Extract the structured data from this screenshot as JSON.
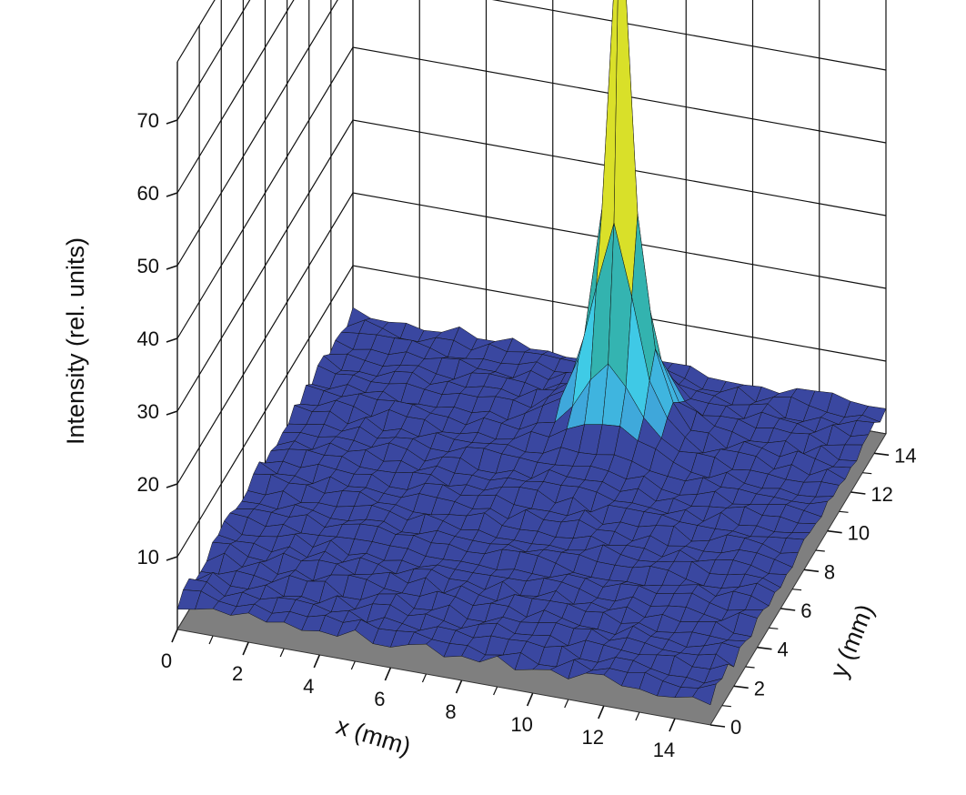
{
  "chart_data": {
    "type": "surface3d",
    "xlabel": "x (mm)",
    "ylabel": "y (mm)",
    "zlabel": "Intensity (rel. units)",
    "x_ticks": [
      "0",
      "2",
      "4",
      "6",
      "8",
      "10",
      "12",
      "14"
    ],
    "y_ticks": [
      "0",
      "2",
      "4",
      "6",
      "8",
      "10",
      "12",
      "14"
    ],
    "z_ticks": [
      "10",
      "20",
      "30",
      "40",
      "50",
      "60",
      "70"
    ],
    "xlim": [
      0,
      15
    ],
    "ylim": [
      0,
      15
    ],
    "zlim": [
      0,
      78
    ],
    "grid": true,
    "grid_step": 0.5,
    "baseline_intensity": 3.5,
    "baseline_noise": 0.9,
    "peak": {
      "x": 8.5,
      "y": 12.0,
      "amplitude": 74.5,
      "width_mm": 0.35
    },
    "colormap": [
      "#1a1a8c",
      "#2f3f9e",
      "#3fa0d8",
      "#3fd0e8",
      "#2fa89a",
      "#4cba48",
      "#c8e030",
      "#f2e020",
      "#f2a020",
      "#e83a2a",
      "#f0a0b0",
      "#ffffff"
    ],
    "surface_base_color": "#3a47a0",
    "floor_color": "#7f7f7f"
  }
}
